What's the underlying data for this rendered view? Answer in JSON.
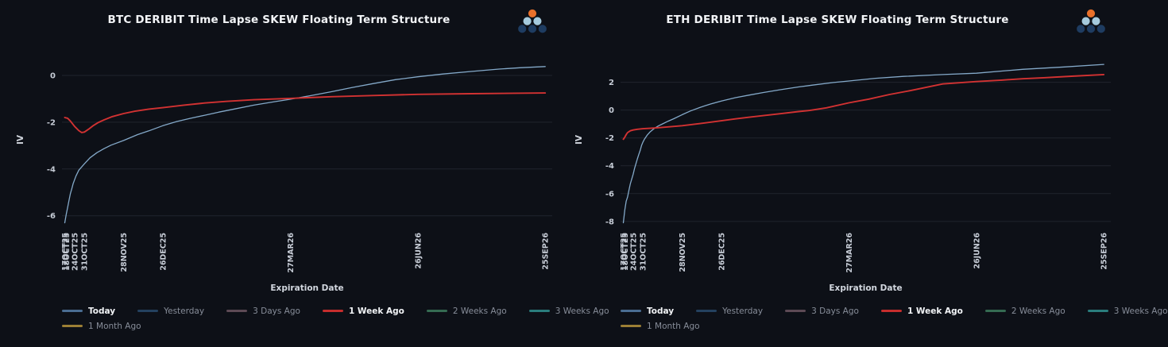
{
  "theme": {
    "background": "#0d1017",
    "grid_color": "#20242e",
    "tick_label_color": "#c6ccd6",
    "axis_title_color": "#d2d7df",
    "title_color": "#f2f4f7",
    "legend_active_color": "#f2f4f7",
    "legend_inactive_color": "#878d99",
    "logo_colors": {
      "top": "#e8702a",
      "middle": "#a5cadd",
      "bottom": "#1e3c61"
    }
  },
  "chart_data": [
    {
      "type": "line",
      "title": "BTC DERIBIT Time Lapse SKEW Floating Term Structure",
      "xlabel": "Expiration Date",
      "ylabel": "IV",
      "x_unit": "days_from_first_expiration",
      "xlim": [
        -2,
        348
      ],
      "ylim": [
        -6.45,
        0.78
      ],
      "yticks": [
        0,
        -2,
        -4,
        -6
      ],
      "xticks": [
        {
          "label": "17OCT25",
          "day": 0
        },
        {
          "label": "18OCT25",
          "day": 1
        },
        {
          "label": "24OCT25",
          "day": 7
        },
        {
          "label": "31OCT25",
          "day": 14
        },
        {
          "label": "28NOV25",
          "day": 42
        },
        {
          "label": "26DEC25",
          "day": 70
        },
        {
          "label": "27MAR26",
          "day": 161
        },
        {
          "label": "26JUN26",
          "day": 252
        },
        {
          "label": "25SEP26",
          "day": 343
        }
      ],
      "series": [
        {
          "name": "Today",
          "color": "#84a9c9",
          "width": 1.3,
          "points": [
            [
              0,
              -6.3
            ],
            [
              1,
              -5.95
            ],
            [
              2,
              -5.65
            ],
            [
              3,
              -5.35
            ],
            [
              4,
              -5.05
            ],
            [
              5,
              -4.85
            ],
            [
              6,
              -4.62
            ],
            [
              8,
              -4.3
            ],
            [
              10,
              -4.05
            ],
            [
              14,
              -3.78
            ],
            [
              18,
              -3.52
            ],
            [
              23,
              -3.3
            ],
            [
              28,
              -3.13
            ],
            [
              33,
              -2.98
            ],
            [
              42,
              -2.78
            ],
            [
              52,
              -2.53
            ],
            [
              60,
              -2.37
            ],
            [
              70,
              -2.15
            ],
            [
              80,
              -1.97
            ],
            [
              90,
              -1.83
            ],
            [
              100,
              -1.7
            ],
            [
              110,
              -1.57
            ],
            [
              120,
              -1.45
            ],
            [
              135,
              -1.27
            ],
            [
              150,
              -1.12
            ],
            [
              161,
              -1.02
            ],
            [
              175,
              -0.87
            ],
            [
              190,
              -0.7
            ],
            [
              205,
              -0.52
            ],
            [
              220,
              -0.35
            ],
            [
              236,
              -0.18
            ],
            [
              252,
              -0.06
            ],
            [
              270,
              0.06
            ],
            [
              290,
              0.17
            ],
            [
              310,
              0.27
            ],
            [
              325,
              0.33
            ],
            [
              343,
              0.38
            ]
          ]
        },
        {
          "name": "1 Week Ago",
          "color": "#d23232",
          "width": 1.9,
          "points": [
            [
              0,
              -1.8
            ],
            [
              2,
              -1.83
            ],
            [
              4,
              -1.95
            ],
            [
              7,
              -2.18
            ],
            [
              10,
              -2.36
            ],
            [
              12,
              -2.44
            ],
            [
              14,
              -2.42
            ],
            [
              17,
              -2.3
            ],
            [
              20,
              -2.16
            ],
            [
              24,
              -2.01
            ],
            [
              28,
              -1.9
            ],
            [
              34,
              -1.76
            ],
            [
              42,
              -1.63
            ],
            [
              50,
              -1.53
            ],
            [
              60,
              -1.44
            ],
            [
              70,
              -1.38
            ],
            [
              85,
              -1.27
            ],
            [
              100,
              -1.18
            ],
            [
              115,
              -1.11
            ],
            [
              135,
              -1.04
            ],
            [
              161,
              -0.98
            ],
            [
              190,
              -0.91
            ],
            [
              220,
              -0.86
            ],
            [
              252,
              -0.81
            ],
            [
              290,
              -0.78
            ],
            [
              343,
              -0.75
            ]
          ]
        }
      ],
      "legend": [
        {
          "label": "Today",
          "color": "#4a6d92",
          "active": true
        },
        {
          "label": "Yesterday",
          "color": "#24415f",
          "active": false
        },
        {
          "label": "3 Days Ago",
          "color": "#5d4a55",
          "active": false
        },
        {
          "label": "1 Week Ago",
          "color": "#c62d2d",
          "active": true
        },
        {
          "label": "2 Weeks Ago",
          "color": "#356b52",
          "active": false
        },
        {
          "label": "3 Weeks Ago",
          "color": "#2a7d7d",
          "active": false
        },
        {
          "label": "1 Month Ago",
          "color": "#9c7f35",
          "active": false
        }
      ]
    },
    {
      "type": "line",
      "title": "ETH DERIBIT Time Lapse SKEW Floating Term Structure",
      "xlabel": "Expiration Date",
      "ylabel": "IV",
      "x_unit": "days_from_first_expiration",
      "xlim": [
        -2,
        348
      ],
      "ylim": [
        -8.35,
        3.8
      ],
      "yticks": [
        2,
        0,
        -2,
        -4,
        -6,
        -8
      ],
      "xticks": [
        {
          "label": "17OCT25",
          "day": 0
        },
        {
          "label": "18OCT25",
          "day": 1
        },
        {
          "label": "24OCT25",
          "day": 7
        },
        {
          "label": "31OCT25",
          "day": 14
        },
        {
          "label": "28NOV25",
          "day": 42
        },
        {
          "label": "26DEC25",
          "day": 70
        },
        {
          "label": "27MAR26",
          "day": 161
        },
        {
          "label": "26JUN26",
          "day": 252
        },
        {
          "label": "25SEP26",
          "day": 343
        }
      ],
      "series": [
        {
          "name": "Today",
          "color": "#84a9c9",
          "width": 1.3,
          "points": [
            [
              0,
              -8.1
            ],
            [
              1,
              -7.2
            ],
            [
              2,
              -6.55
            ],
            [
              3,
              -6.25
            ],
            [
              4,
              -5.75
            ],
            [
              5,
              -5.3
            ],
            [
              6,
              -4.95
            ],
            [
              7,
              -4.6
            ],
            [
              8,
              -4.2
            ],
            [
              9,
              -3.85
            ],
            [
              10,
              -3.5
            ],
            [
              11,
              -3.2
            ],
            [
              12,
              -2.9
            ],
            [
              13,
              -2.55
            ],
            [
              14,
              -2.3
            ],
            [
              15,
              -2.1
            ],
            [
              17,
              -1.8
            ],
            [
              19,
              -1.58
            ],
            [
              22,
              -1.33
            ],
            [
              25,
              -1.14
            ],
            [
              28,
              -0.99
            ],
            [
              32,
              -0.8
            ],
            [
              36,
              -0.62
            ],
            [
              42,
              -0.33
            ],
            [
              48,
              -0.06
            ],
            [
              55,
              0.2
            ],
            [
              62,
              0.43
            ],
            [
              70,
              0.65
            ],
            [
              80,
              0.89
            ],
            [
              90,
              1.08
            ],
            [
              100,
              1.26
            ],
            [
              112,
              1.46
            ],
            [
              125,
              1.66
            ],
            [
              135,
              1.79
            ],
            [
              150,
              1.98
            ],
            [
              161,
              2.09
            ],
            [
              180,
              2.28
            ],
            [
              200,
              2.42
            ],
            [
              228,
              2.55
            ],
            [
              252,
              2.65
            ],
            [
              285,
              2.93
            ],
            [
              315,
              3.1
            ],
            [
              343,
              3.28
            ]
          ]
        },
        {
          "name": "1 Week Ago",
          "color": "#d23232",
          "width": 1.9,
          "points": [
            [
              0,
              -2.1
            ],
            [
              1,
              -1.95
            ],
            [
              2,
              -1.76
            ],
            [
              3,
              -1.62
            ],
            [
              5,
              -1.49
            ],
            [
              7,
              -1.43
            ],
            [
              10,
              -1.38
            ],
            [
              14,
              -1.34
            ],
            [
              20,
              -1.3
            ],
            [
              26,
              -1.26
            ],
            [
              32,
              -1.21
            ],
            [
              42,
              -1.12
            ],
            [
              49,
              -1.04
            ],
            [
              56,
              -0.95
            ],
            [
              63,
              -0.86
            ],
            [
              70,
              -0.77
            ],
            [
              80,
              -0.63
            ],
            [
              90,
              -0.51
            ],
            [
              100,
              -0.4
            ],
            [
              112,
              -0.26
            ],
            [
              125,
              -0.11
            ],
            [
              133,
              -0.03
            ],
            [
              145,
              0.16
            ],
            [
              161,
              0.52
            ],
            [
              175,
              0.78
            ],
            [
              190,
              1.12
            ],
            [
              205,
              1.4
            ],
            [
              228,
              1.88
            ],
            [
              252,
              2.05
            ],
            [
              270,
              2.15
            ],
            [
              285,
              2.25
            ],
            [
              300,
              2.32
            ],
            [
              320,
              2.43
            ],
            [
              343,
              2.55
            ]
          ]
        }
      ],
      "legend": [
        {
          "label": "Today",
          "color": "#4a6d92",
          "active": true
        },
        {
          "label": "Yesterday",
          "color": "#24415f",
          "active": false
        },
        {
          "label": "3 Days Ago",
          "color": "#5d4a55",
          "active": false
        },
        {
          "label": "1 Week Ago",
          "color": "#c62d2d",
          "active": true
        },
        {
          "label": "2 Weeks Ago",
          "color": "#356b52",
          "active": false
        },
        {
          "label": "3 Weeks Ago",
          "color": "#2a7d7d",
          "active": false
        },
        {
          "label": "1 Month Ago",
          "color": "#9c7f35",
          "active": false
        }
      ]
    }
  ]
}
